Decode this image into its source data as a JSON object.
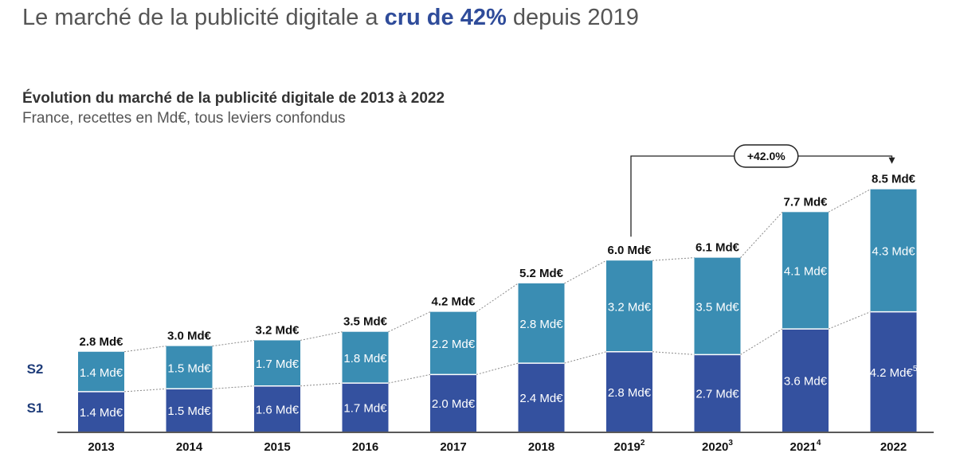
{
  "header": {
    "headline_before": "Le marché de la publicité digitale a",
    "headline_highlight": "cru de 42%",
    "headline_after": "depuis 2019",
    "chart_title": "Évolution du marché de la publicité digitale de 2013 à 2022",
    "chart_subtitle": "France, recettes en Md€, tous leviers confondus"
  },
  "colors": {
    "s1": "#34519f",
    "s2": "#3a8db3",
    "label_text": "#1f3d7a",
    "connector": "#8a8a8a"
  },
  "chart_data": {
    "type": "bar",
    "stacked": true,
    "categories": [
      "2013",
      "2014",
      "2015",
      "2016",
      "2017",
      "2018",
      "2019",
      "2020",
      "2021",
      "2022"
    ],
    "category_superscripts": [
      "",
      "",
      "",
      "",
      "",
      "",
      "2",
      "3",
      "4",
      ""
    ],
    "series": [
      {
        "name": "S1",
        "values": [
          1.4,
          1.5,
          1.6,
          1.7,
          2.0,
          2.4,
          2.8,
          2.7,
          3.6,
          4.2
        ],
        "labels": [
          "1.4 Md€",
          "1.5 Md€",
          "1.6 Md€",
          "1.7 Md€",
          "2.0 Md€",
          "2.4 Md€",
          "2.8 Md€",
          "2.7 Md€",
          "3.6 Md€",
          "4.2 Md€"
        ],
        "label_superscripts": [
          "",
          "",
          "",
          "",
          "",
          "",
          "",
          "",
          "",
          "5"
        ]
      },
      {
        "name": "S2",
        "values": [
          1.4,
          1.5,
          1.7,
          1.8,
          2.2,
          2.8,
          3.2,
          3.5,
          4.1,
          4.3
        ],
        "labels": [
          "1.4 Md€",
          "1.5 Md€",
          "1.7 Md€",
          "1.8 Md€",
          "2.2 Md€",
          "2.8 Md€",
          "3.2 Md€",
          "3.5 Md€",
          "4.1 Md€",
          "4.3 Md€"
        ],
        "label_superscripts": [
          "",
          "",
          "",
          "",
          "",
          "",
          "",
          "",
          "",
          ""
        ]
      }
    ],
    "totals": [
      2.8,
      3.0,
      3.2,
      3.5,
      4.2,
      5.2,
      6.0,
      6.1,
      7.7,
      8.5
    ],
    "total_labels": [
      "2.8 Md€",
      "3.0 Md€",
      "3.2 Md€",
      "3.5 Md€",
      "4.2 Md€",
      "5.2 Md€",
      "6.0 Md€",
      "6.1 Md€",
      "7.7 Md€",
      "8.5 Md€"
    ],
    "growth_annotation": {
      "label": "+42.0%",
      "from": "2019",
      "to": "2022"
    },
    "ylim": [
      0,
      8.5
    ]
  }
}
